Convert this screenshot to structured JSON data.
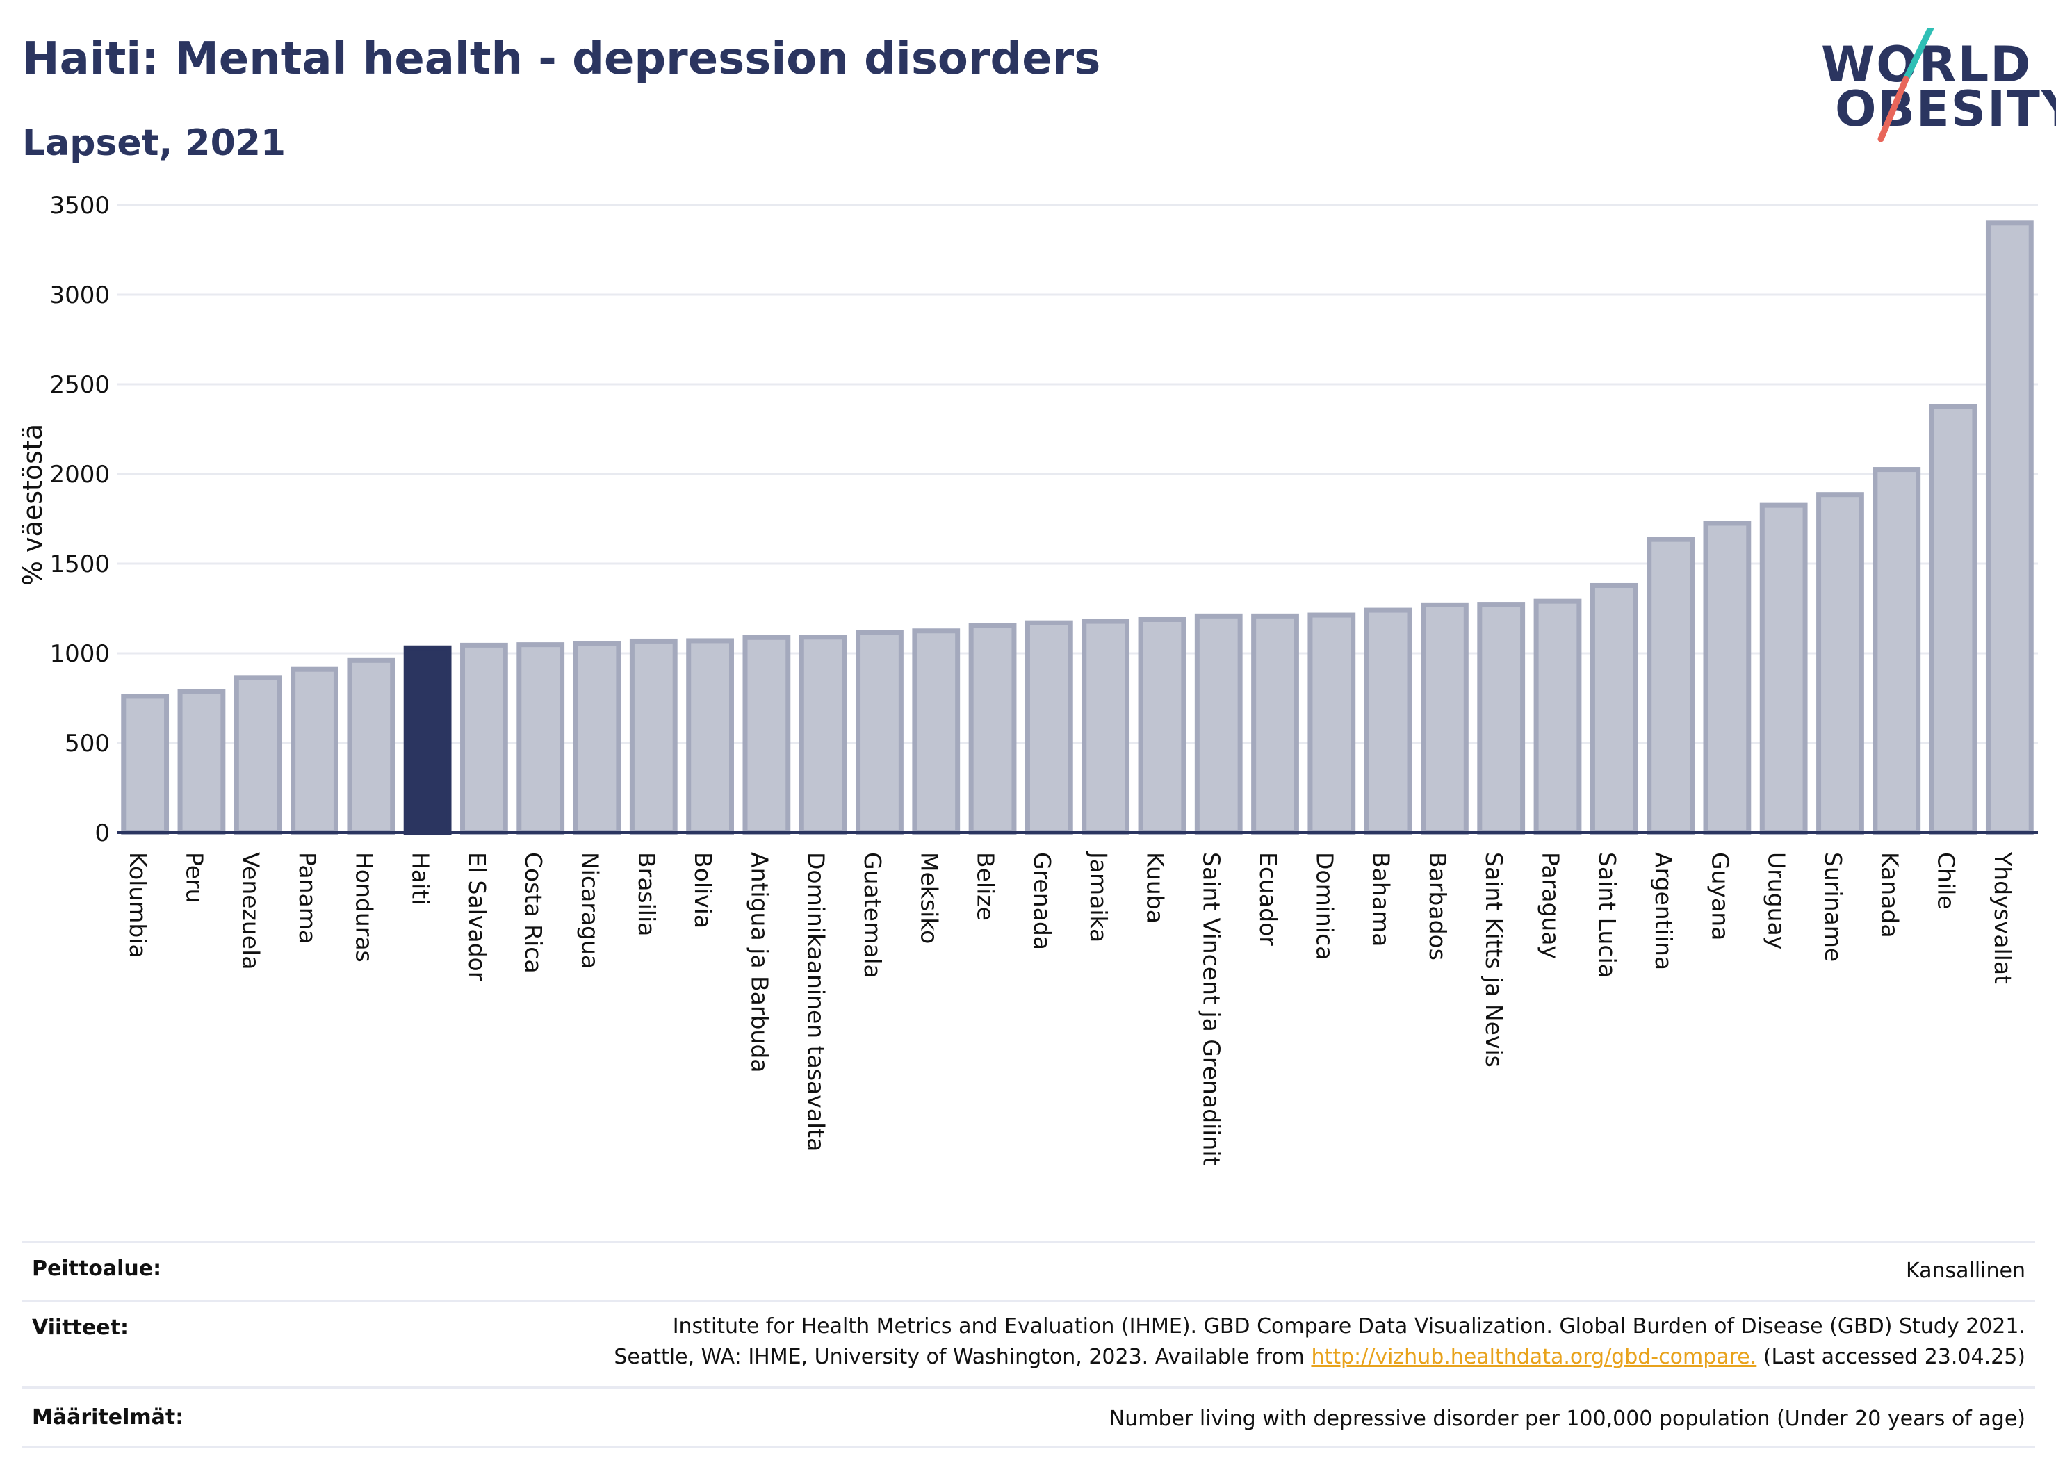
{
  "header": {
    "title": "Haiti: Mental health - depression disorders",
    "subtitle": "Lapset, 2021"
  },
  "logo": {
    "line1": "WORLD",
    "line2": "OBESITY",
    "accent_colors": [
      "#2fbfb5",
      "#e8665a"
    ]
  },
  "colors": {
    "highlight": "#2b3560",
    "bar": "#c0c4d1",
    "bar_border": "#a4a9bd",
    "grid": "#e8eaf0"
  },
  "chart_data": {
    "type": "bar",
    "ylabel": "% väestöstä",
    "ylim": [
      0,
      3500
    ],
    "yticks": [
      0,
      500,
      1000,
      1500,
      2000,
      2500,
      3000,
      3500
    ],
    "grid": true,
    "highlight": "Haiti",
    "categories": [
      "Kolumbia",
      "Peru",
      "Venezuela",
      "Panama",
      "Honduras",
      "Haiti",
      "El Salvador",
      "Costa Rica",
      "Nicaragua",
      "Brasilia",
      "Bolivia",
      "Antigua ja Barbuda",
      "Dominikaaninen tasavalta",
      "Guatemala",
      "Meksiko",
      "Belize",
      "Grenada",
      "Jamaika",
      "Kuuba",
      "Saint Vincent ja Grenadiinit",
      "Ecuador",
      "Dominica",
      "Bahama",
      "Barbados",
      "Saint Kitts ja Nevis",
      "Paraguay",
      "Saint Lucia",
      "Argentiina",
      "Guyana",
      "Uruguay",
      "Suriname",
      "Kanada",
      "Chile",
      "Yhdysvallat"
    ],
    "values": [
      760,
      785,
      865,
      910,
      960,
      1030,
      1045,
      1048,
      1055,
      1068,
      1070,
      1088,
      1090,
      1118,
      1125,
      1155,
      1170,
      1178,
      1188,
      1208,
      1208,
      1213,
      1240,
      1270,
      1273,
      1290,
      1378,
      1635,
      1725,
      1825,
      1885,
      2025,
      2375,
      3400
    ]
  },
  "footer": {
    "coverage": {
      "label": "Peittoalue:",
      "value": "Kansallinen"
    },
    "references": {
      "label": "Viitteet:",
      "line1": "Institute for Health Metrics and Evaluation (IHME). GBD Compare Data Visualization. Global Burden of Disease (GBD) Study 2021.",
      "line2_before": "Seattle, WA: IHME, University of Washington, 2023. Available from ",
      "link": "http://vizhub.healthdata.org/gbd-compare.",
      "line2_after": " (Last accessed 23.04.25)"
    },
    "definitions": {
      "label": "Määritelmät:",
      "value": "Number living with depressive disorder per 100,000 population (Under 20 years of age)"
    }
  }
}
